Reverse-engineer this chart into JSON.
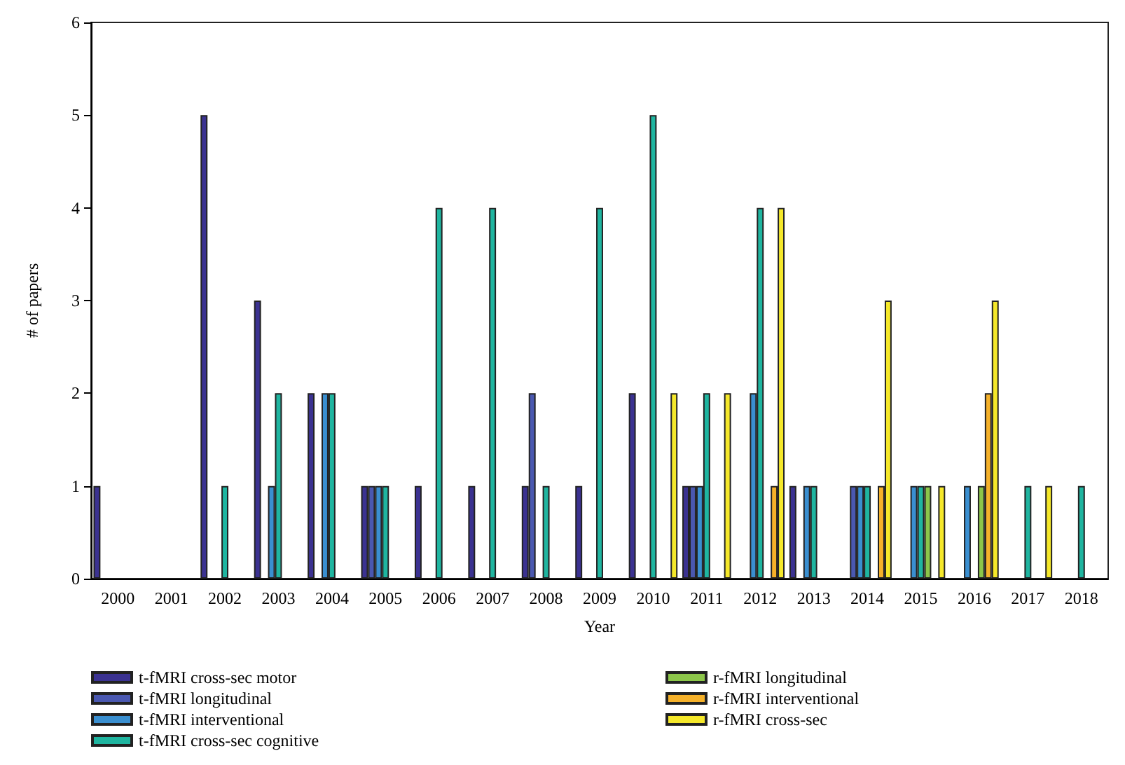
{
  "chart_data": {
    "type": "bar",
    "xlabel": "Year",
    "ylabel": "# of papers",
    "categories": [
      "2000",
      "2001",
      "2002",
      "2003",
      "2004",
      "2005",
      "2006",
      "2007",
      "2008",
      "2009",
      "2010",
      "2011",
      "2012",
      "2013",
      "2014",
      "2015",
      "2016",
      "2017",
      "2018"
    ],
    "series": [
      {
        "name": "t-fMRI cross-sec motor",
        "color": "#3b3291",
        "values": [
          1,
          null,
          5,
          3,
          2,
          1,
          1,
          1,
          1,
          1,
          2,
          1,
          null,
          1,
          null,
          null,
          null,
          null,
          null
        ]
      },
      {
        "name": "t-fMRI longitudinal",
        "color": "#4a58b0",
        "values": [
          null,
          null,
          null,
          null,
          null,
          1,
          null,
          null,
          2,
          null,
          null,
          1,
          null,
          null,
          1,
          null,
          null,
          null,
          null
        ]
      },
      {
        "name": "t-fMRI interventional",
        "color": "#3a8fd0",
        "values": [
          null,
          null,
          null,
          1,
          2,
          1,
          null,
          null,
          null,
          null,
          null,
          1,
          2,
          1,
          1,
          1,
          1,
          null,
          null
        ]
      },
      {
        "name": "t-fMRI cross-sec cognitive",
        "color": "#1fb5a0",
        "values": [
          null,
          null,
          1,
          2,
          2,
          1,
          4,
          4,
          1,
          4,
          5,
          2,
          4,
          1,
          1,
          1,
          null,
          1,
          1
        ]
      },
      {
        "name": "r-fMRI longitudinal",
        "color": "#8cc64a",
        "values": [
          null,
          null,
          null,
          null,
          null,
          null,
          null,
          null,
          null,
          null,
          null,
          null,
          null,
          null,
          null,
          1,
          1,
          null,
          null
        ]
      },
      {
        "name": "r-fMRI interventional",
        "color": "#f5b12a",
        "values": [
          null,
          null,
          null,
          null,
          null,
          null,
          null,
          null,
          null,
          null,
          null,
          null,
          1,
          null,
          1,
          null,
          2,
          null,
          null
        ]
      },
      {
        "name": "r-fMRI cross-sec",
        "color": "#f5e82a",
        "values": [
          null,
          null,
          null,
          null,
          null,
          null,
          null,
          null,
          null,
          null,
          2,
          2,
          4,
          null,
          3,
          1,
          3,
          1,
          null
        ]
      }
    ],
    "ylim": [
      0,
      6
    ],
    "yticks": [
      0,
      1,
      2,
      3,
      4,
      5,
      6
    ],
    "grid": false,
    "legend": "bottom"
  }
}
